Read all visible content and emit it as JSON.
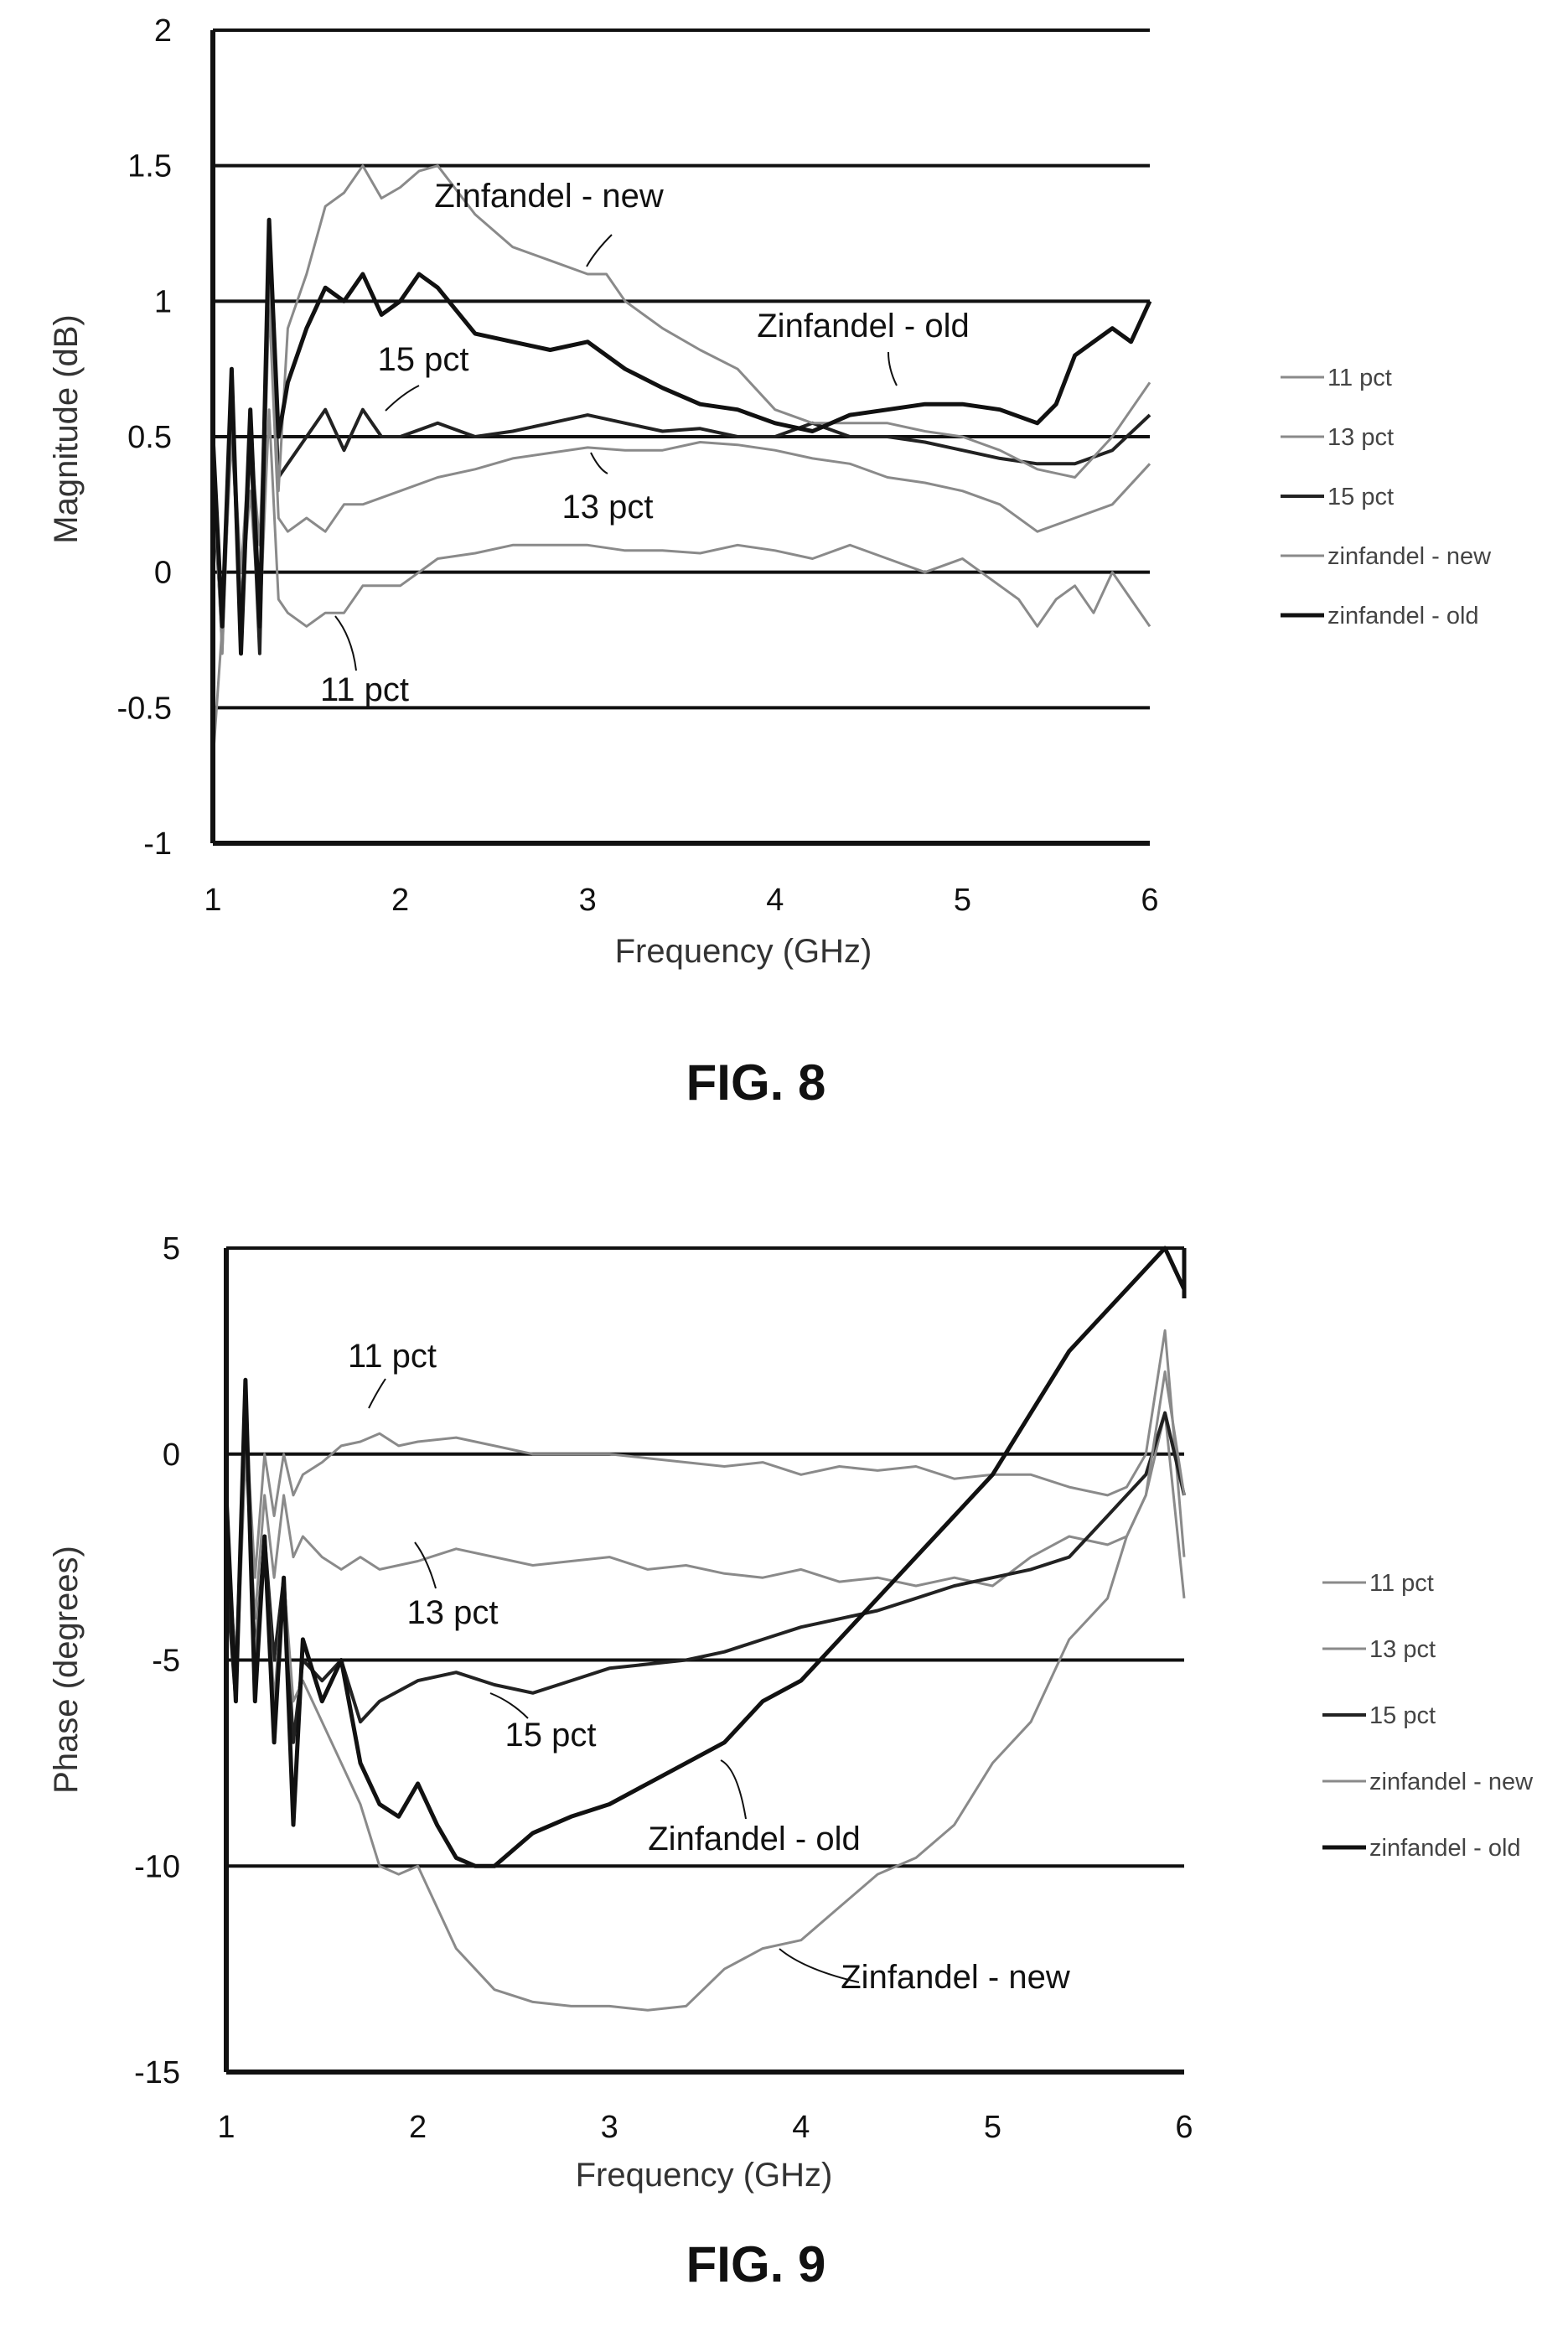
{
  "figure_labels": [
    "FIG. 8",
    "FIG. 9"
  ],
  "chart_data": [
    {
      "type": "line",
      "xlabel": "Frequency (GHz)",
      "ylabel": "Magnitude (dB)",
      "xlim": [
        1,
        6
      ],
      "ylim": [
        -1,
        2
      ],
      "xticks": [
        "1",
        "2",
        "3",
        "4",
        "5",
        "6"
      ],
      "yticks": [
        "-1",
        "-0.5",
        "0",
        "0.5",
        "1",
        "1.5",
        "2"
      ],
      "gridlines_y": [
        -0.5,
        0,
        0.5,
        1,
        1.5,
        2
      ],
      "legend": {
        "placement": "right",
        "entries": [
          "11 pct",
          "13 pct",
          "15 pct",
          "zinfandel - new",
          "zinfandel - old"
        ]
      },
      "annotations": [
        {
          "text": "Zinfandel - new",
          "series": "zinfandel - new",
          "x": 3.1,
          "y": 1.12
        },
        {
          "text": "Zinfandel - old",
          "series": "zinfandel - old",
          "x": 3.6,
          "y": 0.8
        },
        {
          "text": "15 pct",
          "series": "15 pct",
          "x": 2.1,
          "y": 0.6
        },
        {
          "text": "13 pct",
          "series": "13 pct",
          "x": 3.0,
          "y": 0.47
        },
        {
          "text": "11 pct",
          "series": "11 pct",
          "x": 1.8,
          "y": -0.25
        }
      ],
      "series": [
        {
          "name": "11 pct",
          "color": "#8a8a8a",
          "width": 3,
          "x": [
            1,
            1.05,
            1.1,
            1.15,
            1.2,
            1.25,
            1.3,
            1.35,
            1.4,
            1.5,
            1.6,
            1.7,
            1.8,
            1.9,
            2.0,
            2.1,
            2.2,
            2.4,
            2.6,
            2.8,
            3.0,
            3.2,
            3.4,
            3.6,
            3.8,
            4.0,
            4.2,
            4.4,
            4.6,
            4.8,
            5.0,
            5.1,
            5.2,
            5.3,
            5.4,
            5.5,
            5.6,
            5.7,
            5.8,
            5.9,
            6.0
          ],
          "y": [
            -0.7,
            -0.2,
            0.5,
            -0.1,
            0.3,
            -0.2,
            0.6,
            -0.1,
            -0.15,
            -0.2,
            -0.15,
            -0.15,
            -0.05,
            -0.05,
            -0.05,
            0.0,
            0.05,
            0.07,
            0.1,
            0.1,
            0.1,
            0.08,
            0.08,
            0.07,
            0.1,
            0.08,
            0.05,
            0.1,
            0.05,
            0.0,
            0.05,
            0.0,
            -0.05,
            -0.1,
            -0.2,
            -0.1,
            -0.05,
            -0.15,
            0.0,
            -0.1,
            -0.2
          ]
        },
        {
          "name": "13 pct",
          "color": "#8a8a8a",
          "width": 3,
          "x": [
            1,
            1.05,
            1.1,
            1.15,
            1.2,
            1.25,
            1.3,
            1.35,
            1.4,
            1.5,
            1.6,
            1.7,
            1.8,
            2.0,
            2.2,
            2.4,
            2.6,
            2.8,
            3.0,
            3.2,
            3.4,
            3.6,
            3.8,
            4.0,
            4.2,
            4.4,
            4.6,
            4.8,
            5.0,
            5.2,
            5.4,
            5.6,
            5.8,
            6.0
          ],
          "y": [
            0.4,
            -0.3,
            0.7,
            -0.2,
            0.6,
            -0.25,
            1.0,
            0.2,
            0.15,
            0.2,
            0.15,
            0.25,
            0.25,
            0.3,
            0.35,
            0.38,
            0.42,
            0.44,
            0.46,
            0.45,
            0.45,
            0.48,
            0.47,
            0.45,
            0.42,
            0.4,
            0.35,
            0.33,
            0.3,
            0.25,
            0.15,
            0.2,
            0.25,
            0.4
          ]
        },
        {
          "name": "15 pct",
          "color": "#222222",
          "width": 4,
          "x": [
            1,
            1.05,
            1.1,
            1.15,
            1.2,
            1.25,
            1.3,
            1.35,
            1.4,
            1.5,
            1.6,
            1.7,
            1.8,
            1.9,
            2.0,
            2.2,
            2.4,
            2.6,
            2.8,
            3.0,
            3.2,
            3.4,
            3.6,
            3.8,
            4.0,
            4.2,
            4.4,
            4.6,
            4.8,
            5.0,
            5.2,
            5.4,
            5.6,
            5.8,
            6.0
          ],
          "y": [
            0.3,
            -0.2,
            0.65,
            -0.25,
            0.5,
            -0.3,
            1.2,
            0.35,
            0.4,
            0.5,
            0.6,
            0.45,
            0.6,
            0.5,
            0.5,
            0.55,
            0.5,
            0.52,
            0.55,
            0.58,
            0.55,
            0.52,
            0.53,
            0.5,
            0.5,
            0.55,
            0.5,
            0.5,
            0.48,
            0.45,
            0.42,
            0.4,
            0.4,
            0.45,
            0.58
          ]
        },
        {
          "name": "zinfandel - new",
          "color": "#8a8a8a",
          "width": 3,
          "x": [
            1,
            1.05,
            1.1,
            1.15,
            1.2,
            1.25,
            1.3,
            1.35,
            1.4,
            1.5,
            1.6,
            1.7,
            1.8,
            1.9,
            2.0,
            2.1,
            2.2,
            2.4,
            2.6,
            2.8,
            3.0,
            3.1,
            3.2,
            3.4,
            3.6,
            3.8,
            4.0,
            4.2,
            4.4,
            4.6,
            4.8,
            5.0,
            5.2,
            5.4,
            5.6,
            5.8,
            6.0
          ],
          "y": [
            0.4,
            -0.3,
            0.6,
            0.0,
            0.5,
            0.1,
            1.1,
            0.3,
            0.9,
            1.1,
            1.35,
            1.4,
            1.5,
            1.38,
            1.42,
            1.48,
            1.5,
            1.32,
            1.2,
            1.15,
            1.1,
            1.1,
            1.0,
            0.9,
            0.82,
            0.75,
            0.6,
            0.55,
            0.55,
            0.55,
            0.52,
            0.5,
            0.45,
            0.38,
            0.35,
            0.5,
            0.7
          ]
        },
        {
          "name": "zinfandel - old",
          "color": "#111111",
          "width": 5,
          "x": [
            1,
            1.05,
            1.1,
            1.15,
            1.2,
            1.25,
            1.3,
            1.35,
            1.4,
            1.5,
            1.6,
            1.7,
            1.8,
            1.9,
            2.0,
            2.1,
            2.2,
            2.4,
            2.6,
            2.8,
            3.0,
            3.2,
            3.4,
            3.6,
            3.8,
            4.0,
            4.2,
            4.4,
            4.6,
            4.8,
            5.0,
            5.2,
            5.4,
            5.5,
            5.6,
            5.7,
            5.8,
            5.9,
            6.0
          ],
          "y": [
            0.5,
            -0.2,
            0.75,
            -0.3,
            0.6,
            -0.2,
            1.3,
            0.5,
            0.7,
            0.9,
            1.05,
            1.0,
            1.1,
            0.95,
            1.0,
            1.1,
            1.05,
            0.88,
            0.85,
            0.82,
            0.85,
            0.75,
            0.68,
            0.62,
            0.6,
            0.55,
            0.52,
            0.58,
            0.6,
            0.62,
            0.62,
            0.6,
            0.55,
            0.62,
            0.8,
            0.85,
            0.9,
            0.85,
            1.0
          ]
        }
      ]
    },
    {
      "type": "line",
      "xlabel": "Frequency (GHz)",
      "ylabel": "Phase (degrees)",
      "xlim": [
        1,
        6
      ],
      "ylim": [
        -15,
        5
      ],
      "xticks": [
        "1",
        "2",
        "3",
        "4",
        "5",
        "6"
      ],
      "yticks": [
        "-15",
        "-10",
        "-5",
        "0",
        "5"
      ],
      "gridlines_y": [
        -10,
        -5,
        0,
        5
      ],
      "legend": {
        "placement": "right",
        "entries": [
          "11 pct",
          "13 pct",
          "15 pct",
          "zinfandel - new",
          "zinfandel - old"
        ]
      },
      "annotations": [
        {
          "text": "11 pct",
          "series": "11 pct",
          "x": 1.75,
          "y": 0.5
        },
        {
          "text": "13 pct",
          "series": "13 pct",
          "x": 2.05,
          "y": -2.3
        },
        {
          "text": "15 pct",
          "series": "15 pct",
          "x": 2.4,
          "y": -5.7
        },
        {
          "text": "Zinfandel - old",
          "series": "zinfandel - old",
          "x": 3.55,
          "y": -7.5
        },
        {
          "text": "Zinfandel - new",
          "series": "zinfandel - new",
          "x": 3.9,
          "y": -12.4
        }
      ],
      "series": [
        {
          "name": "11 pct",
          "color": "#8a8a8a",
          "width": 3,
          "x": [
            1,
            1.05,
            1.1,
            1.15,
            1.2,
            1.25,
            1.3,
            1.35,
            1.4,
            1.5,
            1.6,
            1.7,
            1.8,
            1.9,
            2.0,
            2.2,
            2.4,
            2.6,
            2.8,
            3.0,
            3.2,
            3.4,
            3.6,
            3.8,
            4.0,
            4.2,
            4.4,
            4.6,
            4.8,
            5.0,
            5.2,
            5.4,
            5.6,
            5.7,
            5.8,
            5.9,
            6.0
          ],
          "y": [
            -2,
            -5,
            1,
            -3,
            0,
            -1.5,
            0,
            -1,
            -0.5,
            -0.2,
            0.2,
            0.3,
            0.5,
            0.2,
            0.3,
            0.4,
            0.2,
            0.0,
            0.0,
            0.0,
            -0.1,
            -0.2,
            -0.3,
            -0.2,
            -0.5,
            -0.3,
            -0.4,
            -0.3,
            -0.6,
            -0.5,
            -0.5,
            -0.8,
            -1.0,
            -0.8,
            0.0,
            3.0,
            -2.5
          ]
        },
        {
          "name": "13 pct",
          "color": "#8a8a8a",
          "width": 3,
          "x": [
            1,
            1.05,
            1.1,
            1.15,
            1.2,
            1.25,
            1.3,
            1.35,
            1.4,
            1.5,
            1.6,
            1.7,
            1.8,
            2.0,
            2.2,
            2.4,
            2.6,
            2.8,
            3.0,
            3.2,
            3.4,
            3.6,
            3.8,
            4.0,
            4.2,
            4.4,
            4.6,
            4.8,
            5.0,
            5.2,
            5.4,
            5.6,
            5.7,
            5.8,
            5.9,
            6.0
          ],
          "y": [
            -3,
            -6,
            0,
            -4,
            -1,
            -3,
            -1,
            -2.5,
            -2,
            -2.5,
            -2.8,
            -2.5,
            -2.8,
            -2.6,
            -2.3,
            -2.5,
            -2.7,
            -2.6,
            -2.5,
            -2.8,
            -2.7,
            -2.9,
            -3.0,
            -2.8,
            -3.1,
            -3.0,
            -3.2,
            -3.0,
            -3.2,
            -2.5,
            -2.0,
            -2.2,
            -2.0,
            -1.0,
            1.0,
            -3.5
          ]
        },
        {
          "name": "15 pct",
          "color": "#222222",
          "width": 4,
          "x": [
            1,
            1.05,
            1.1,
            1.15,
            1.2,
            1.25,
            1.3,
            1.35,
            1.4,
            1.5,
            1.6,
            1.7,
            1.8,
            2.0,
            2.2,
            2.4,
            2.6,
            2.8,
            3.0,
            3.2,
            3.4,
            3.6,
            3.8,
            4.0,
            4.2,
            4.4,
            4.6,
            4.8,
            5.0,
            5.2,
            5.4,
            5.6,
            5.7,
            5.8,
            5.9,
            6.0
          ],
          "y": [
            -3,
            -6,
            1.5,
            -5,
            -2,
            -5,
            -3,
            -7,
            -5,
            -5.5,
            -5,
            -6.5,
            -6,
            -5.5,
            -5.3,
            -5.6,
            -5.8,
            -5.5,
            -5.2,
            -5.1,
            -5.0,
            -4.8,
            -4.5,
            -4.2,
            -4.0,
            -3.8,
            -3.5,
            -3.2,
            -3.0,
            -2.8,
            -2.5,
            -1.5,
            -1.0,
            -0.5,
            1.0,
            -1.0
          ]
        },
        {
          "name": "zinfandel - new",
          "color": "#8a8a8a",
          "width": 3,
          "x": [
            1,
            1.05,
            1.1,
            1.15,
            1.2,
            1.25,
            1.3,
            1.35,
            1.4,
            1.5,
            1.6,
            1.7,
            1.8,
            1.9,
            2.0,
            2.2,
            2.4,
            2.6,
            2.8,
            3.0,
            3.2,
            3.4,
            3.6,
            3.8,
            4.0,
            4.2,
            4.4,
            4.6,
            4.8,
            5.0,
            5.2,
            5.4,
            5.6,
            5.7,
            5.8,
            5.9,
            6.0
          ],
          "y": [
            -2,
            -5,
            1,
            -5,
            -2,
            -6,
            -3,
            -6,
            -5.5,
            -6.5,
            -7.5,
            -8.5,
            -10,
            -10.2,
            -10.0,
            -12.0,
            -13.0,
            -13.3,
            -13.4,
            -13.4,
            -13.5,
            -13.4,
            -12.5,
            -12.0,
            -11.8,
            -11.0,
            -10.2,
            -9.8,
            -9.0,
            -7.5,
            -6.5,
            -4.5,
            -3.5,
            -2.0,
            -1.0,
            2.0,
            -1.0
          ]
        },
        {
          "name": "zinfandel - old",
          "color": "#111111",
          "width": 5,
          "x": [
            1,
            1.05,
            1.1,
            1.15,
            1.2,
            1.25,
            1.3,
            1.35,
            1.4,
            1.5,
            1.6,
            1.7,
            1.8,
            1.9,
            2.0,
            2.1,
            2.2,
            2.3,
            2.4,
            2.6,
            2.8,
            3.0,
            3.2,
            3.4,
            3.6,
            3.8,
            4.0,
            4.2,
            4.4,
            4.6,
            4.8,
            5.0,
            5.2,
            5.4,
            5.6,
            5.8,
            5.9,
            6.0
          ],
          "y": [
            -1,
            -6,
            1.8,
            -6,
            -2,
            -7,
            -3,
            -9,
            -4.5,
            -6,
            -5,
            -7.5,
            -8.5,
            -8.8,
            -8.0,
            -9.0,
            -9.8,
            -10.0,
            -10.0,
            -9.2,
            -8.8,
            -8.5,
            -8.0,
            -7.5,
            -7.0,
            -6.0,
            -5.5,
            -4.5,
            -3.5,
            -2.5,
            -1.5,
            -0.5,
            1.0,
            2.5,
            3.5,
            4.5,
            5.0,
            4.0
          ]
        }
      ]
    }
  ]
}
